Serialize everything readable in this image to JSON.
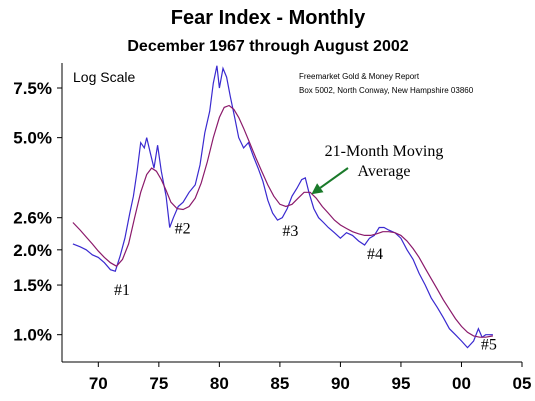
{
  "chart_data": {
    "type": "line",
    "title": "Fear Index - Monthly",
    "subtitle": "December 1967 through August 2002",
    "scale_label": "Log Scale",
    "source": [
      "Freemarket Gold & Money Report",
      "Box 5002, North Conway, New Hampshire 03860"
    ],
    "y_scale": "log",
    "ylim": [
      0.8,
      9.2
    ],
    "xlim": [
      1967,
      2005
    ],
    "y_ticks": [
      {
        "value": 7.5,
        "label": "7.5%"
      },
      {
        "value": 5.0,
        "label": "5.0%"
      },
      {
        "value": 2.6,
        "label": "2.6%"
      },
      {
        "value": 2.0,
        "label": "2.0%"
      },
      {
        "value": 1.5,
        "label": "1.5%"
      },
      {
        "value": 1.0,
        "label": "1.0%"
      }
    ],
    "x_ticks": [
      {
        "value": 1970,
        "label": "70"
      },
      {
        "value": 1975,
        "label": "75"
      },
      {
        "value": 1980,
        "label": "80"
      },
      {
        "value": 1985,
        "label": "85"
      },
      {
        "value": 1990,
        "label": "90"
      },
      {
        "value": 1995,
        "label": "95"
      },
      {
        "value": 2000,
        "label": "00"
      },
      {
        "value": 2005,
        "label": "05"
      }
    ],
    "series": [
      {
        "key": "fear_index",
        "color": "#3a2ad0",
        "points": [
          [
            1967.9,
            2.1
          ],
          [
            1968.5,
            2.05
          ],
          [
            1969.0,
            2.0
          ],
          [
            1969.5,
            1.92
          ],
          [
            1970.0,
            1.88
          ],
          [
            1970.5,
            1.8
          ],
          [
            1971.0,
            1.7
          ],
          [
            1971.4,
            1.68
          ],
          [
            1971.8,
            1.9
          ],
          [
            1972.2,
            2.2
          ],
          [
            1972.6,
            2.7
          ],
          [
            1972.9,
            3.1
          ],
          [
            1973.2,
            3.8
          ],
          [
            1973.5,
            4.8
          ],
          [
            1973.8,
            4.6
          ],
          [
            1974.0,
            5.0
          ],
          [
            1974.3,
            4.4
          ],
          [
            1974.6,
            3.9
          ],
          [
            1974.9,
            4.7
          ],
          [
            1975.2,
            3.8
          ],
          [
            1975.6,
            3.1
          ],
          [
            1975.9,
            2.4
          ],
          [
            1976.2,
            2.6
          ],
          [
            1976.6,
            2.85
          ],
          [
            1977.0,
            2.95
          ],
          [
            1977.5,
            3.2
          ],
          [
            1978.0,
            3.4
          ],
          [
            1978.4,
            4.0
          ],
          [
            1978.8,
            5.2
          ],
          [
            1979.2,
            6.2
          ],
          [
            1979.5,
            7.8
          ],
          [
            1979.8,
            9.0
          ],
          [
            1980.0,
            7.5
          ],
          [
            1980.3,
            8.8
          ],
          [
            1980.6,
            8.2
          ],
          [
            1980.9,
            7.0
          ],
          [
            1981.3,
            5.8
          ],
          [
            1981.6,
            5.0
          ],
          [
            1982.0,
            4.6
          ],
          [
            1982.4,
            4.8
          ],
          [
            1982.8,
            4.3
          ],
          [
            1983.2,
            3.9
          ],
          [
            1983.6,
            3.5
          ],
          [
            1984.0,
            3.0
          ],
          [
            1984.4,
            2.7
          ],
          [
            1984.8,
            2.55
          ],
          [
            1985.2,
            2.6
          ],
          [
            1985.6,
            2.8
          ],
          [
            1986.0,
            3.1
          ],
          [
            1986.4,
            3.3
          ],
          [
            1986.8,
            3.55
          ],
          [
            1987.1,
            3.6
          ],
          [
            1987.4,
            3.2
          ],
          [
            1987.8,
            2.8
          ],
          [
            1988.2,
            2.6
          ],
          [
            1988.6,
            2.5
          ],
          [
            1989.0,
            2.4
          ],
          [
            1989.5,
            2.3
          ],
          [
            1990.0,
            2.2
          ],
          [
            1990.5,
            2.3
          ],
          [
            1991.0,
            2.25
          ],
          [
            1991.5,
            2.15
          ],
          [
            1992.0,
            2.08
          ],
          [
            1992.4,
            2.2
          ],
          [
            1992.8,
            2.25
          ],
          [
            1993.2,
            2.4
          ],
          [
            1993.6,
            2.4
          ],
          [
            1994.0,
            2.35
          ],
          [
            1994.5,
            2.3
          ],
          [
            1995.0,
            2.2
          ],
          [
            1995.5,
            2.0
          ],
          [
            1996.0,
            1.85
          ],
          [
            1996.5,
            1.65
          ],
          [
            1997.0,
            1.5
          ],
          [
            1997.5,
            1.35
          ],
          [
            1998.0,
            1.25
          ],
          [
            1998.5,
            1.15
          ],
          [
            1999.0,
            1.05
          ],
          [
            1999.5,
            1.0
          ],
          [
            2000.0,
            0.95
          ],
          [
            2000.5,
            0.9
          ],
          [
            2001.0,
            0.95
          ],
          [
            2001.4,
            1.05
          ],
          [
            2001.7,
            0.98
          ],
          [
            2002.0,
            1.0
          ],
          [
            2002.6,
            1.0
          ]
        ]
      },
      {
        "key": "moving_average",
        "color": "#8b1a6b",
        "points": [
          [
            1967.9,
            2.5
          ],
          [
            1968.5,
            2.35
          ],
          [
            1969.0,
            2.22
          ],
          [
            1969.5,
            2.1
          ],
          [
            1970.0,
            1.98
          ],
          [
            1970.5,
            1.88
          ],
          [
            1971.0,
            1.8
          ],
          [
            1971.5,
            1.75
          ],
          [
            1972.0,
            1.85
          ],
          [
            1972.5,
            2.1
          ],
          [
            1973.0,
            2.6
          ],
          [
            1973.5,
            3.2
          ],
          [
            1974.0,
            3.7
          ],
          [
            1974.4,
            3.9
          ],
          [
            1974.8,
            3.8
          ],
          [
            1975.2,
            3.55
          ],
          [
            1975.6,
            3.25
          ],
          [
            1976.0,
            2.95
          ],
          [
            1976.5,
            2.8
          ],
          [
            1977.0,
            2.78
          ],
          [
            1977.5,
            2.85
          ],
          [
            1978.0,
            3.05
          ],
          [
            1978.5,
            3.45
          ],
          [
            1979.0,
            4.1
          ],
          [
            1979.5,
            5.0
          ],
          [
            1980.0,
            5.9
          ],
          [
            1980.4,
            6.4
          ],
          [
            1980.8,
            6.5
          ],
          [
            1981.2,
            6.3
          ],
          [
            1981.6,
            5.9
          ],
          [
            1982.0,
            5.4
          ],
          [
            1982.5,
            4.8
          ],
          [
            1983.0,
            4.25
          ],
          [
            1983.5,
            3.8
          ],
          [
            1984.0,
            3.4
          ],
          [
            1984.5,
            3.1
          ],
          [
            1985.0,
            2.9
          ],
          [
            1985.5,
            2.85
          ],
          [
            1986.0,
            2.9
          ],
          [
            1986.5,
            3.05
          ],
          [
            1987.0,
            3.2
          ],
          [
            1987.5,
            3.2
          ],
          [
            1988.0,
            3.05
          ],
          [
            1988.5,
            2.85
          ],
          [
            1989.0,
            2.7
          ],
          [
            1989.5,
            2.55
          ],
          [
            1990.0,
            2.45
          ],
          [
            1990.5,
            2.38
          ],
          [
            1991.0,
            2.32
          ],
          [
            1991.5,
            2.28
          ],
          [
            1992.0,
            2.25
          ],
          [
            1992.5,
            2.25
          ],
          [
            1993.0,
            2.28
          ],
          [
            1993.5,
            2.32
          ],
          [
            1994.0,
            2.32
          ],
          [
            1994.5,
            2.3
          ],
          [
            1995.0,
            2.25
          ],
          [
            1995.5,
            2.15
          ],
          [
            1996.0,
            2.02
          ],
          [
            1996.5,
            1.88
          ],
          [
            1997.0,
            1.72
          ],
          [
            1997.5,
            1.58
          ],
          [
            1998.0,
            1.45
          ],
          [
            1998.5,
            1.33
          ],
          [
            1999.0,
            1.23
          ],
          [
            1999.5,
            1.14
          ],
          [
            2000.0,
            1.07
          ],
          [
            2000.5,
            1.02
          ],
          [
            2001.0,
            0.99
          ],
          [
            2001.5,
            0.98
          ],
          [
            2002.0,
            0.98
          ],
          [
            2002.6,
            0.99
          ]
        ]
      }
    ],
    "annotations": [
      {
        "label": "#1",
        "x": 1971.3,
        "y": 1.45
      },
      {
        "label": "#2",
        "x": 1976.3,
        "y": 2.4
      },
      {
        "label": "#3",
        "x": 1985.2,
        "y": 2.35
      },
      {
        "label": "#4",
        "x": 1992.2,
        "y": 1.95
      },
      {
        "label": "#5",
        "x": 2001.6,
        "y": 0.93
      }
    ],
    "arrow_annotation": {
      "lines": [
        "21-Month Moving",
        "Average"
      ],
      "points_to_x": 1987.6,
      "points_to_y": 3.15
    }
  }
}
